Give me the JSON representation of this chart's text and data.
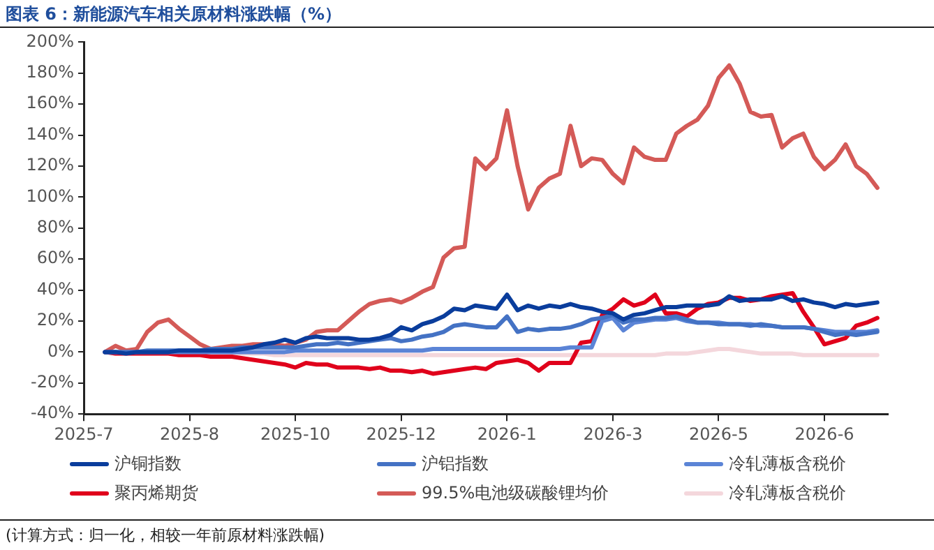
{
  "chart_data": {
    "type": "line",
    "title": "图表 6：新能源汽车相关原材料涨跌幅（%）",
    "categories": [
      "2025-7",
      null,
      null,
      null,
      null,
      null,
      null,
      null,
      null,
      null,
      "2025-8",
      null,
      null,
      null,
      null,
      null,
      null,
      null,
      null,
      null,
      "2025-10",
      null,
      null,
      null,
      null,
      null,
      null,
      null,
      null,
      null,
      "2025-12",
      null,
      null,
      null,
      null,
      null,
      null,
      null,
      null,
      null,
      "2026-1",
      null,
      null,
      null,
      null,
      null,
      null,
      null,
      null,
      null,
      "2026-3",
      null,
      null,
      null,
      null,
      null,
      null,
      null,
      null,
      null,
      "2026-5",
      null,
      null,
      null,
      null,
      null,
      null,
      null,
      null,
      null,
      "2026-6",
      null,
      null,
      null,
      null,
      null,
      null
    ],
    "series": [
      {
        "name": "沪铜指数",
        "color": "#0a3d9c",
        "values": [
          null,
          null,
          0,
          0,
          -1,
          0,
          0,
          0,
          0,
          1,
          1,
          1,
          1,
          1,
          1,
          2,
          3,
          5,
          6,
          8,
          6,
          9,
          10,
          9,
          9,
          9,
          8,
          8,
          9,
          11,
          16,
          14,
          18,
          20,
          23,
          28,
          27,
          30,
          29,
          28,
          37,
          27,
          30,
          28,
          30,
          29,
          31,
          29,
          28,
          26,
          25,
          21,
          24,
          25,
          27,
          29,
          29,
          30,
          30,
          30,
          31,
          36,
          33,
          34,
          34,
          34,
          36,
          33,
          34,
          32,
          31,
          29,
          31,
          30,
          31,
          32,
          null
        ]
      },
      {
        "name": "沪铝指数",
        "color": "#4472c4",
        "values": [
          null,
          null,
          0,
          0,
          0,
          0,
          1,
          1,
          1,
          1,
          1,
          1,
          2,
          2,
          2,
          3,
          3,
          3,
          3,
          3,
          3,
          4,
          5,
          5,
          6,
          5,
          6,
          7,
          8,
          9,
          7,
          8,
          10,
          11,
          13,
          17,
          18,
          17,
          16,
          16,
          23,
          13,
          15,
          14,
          15,
          15,
          16,
          18,
          21,
          22,
          24,
          19,
          21,
          21,
          22,
          22,
          23,
          21,
          19,
          19,
          18,
          18,
          18,
          17,
          18,
          17,
          16,
          16,
          16,
          15,
          13,
          11,
          12,
          11,
          12,
          13,
          null
        ]
      },
      {
        "name": "冷轧薄板含税价",
        "color": "#5b84d6",
        "values": [
          null,
          null,
          0,
          0,
          0,
          0,
          0,
          0,
          0,
          0,
          0,
          0,
          0,
          0,
          0,
          0,
          0,
          0,
          0,
          0,
          1,
          1,
          1,
          1,
          1,
          1,
          1,
          1,
          1,
          1,
          1,
          1,
          1,
          2,
          2,
          2,
          2,
          2,
          2,
          2,
          2,
          2,
          2,
          2,
          2,
          2,
          3,
          3,
          3,
          20,
          22,
          14,
          19,
          20,
          21,
          21,
          22,
          20,
          19,
          19,
          19,
          18,
          18,
          18,
          17,
          17,
          16,
          16,
          16,
          15,
          14,
          13,
          13,
          13,
          13,
          14,
          null
        ]
      },
      {
        "name": "聚丙烯期货",
        "color": "#e0001b",
        "values": [
          null,
          null,
          0,
          -1,
          -1,
          -1,
          -1,
          -1,
          -1,
          -2,
          -2,
          -2,
          -3,
          -3,
          -3,
          -4,
          -5,
          -6,
          -7,
          -8,
          -10,
          -7,
          -8,
          -8,
          -10,
          -10,
          -10,
          -11,
          -10,
          -12,
          -12,
          -13,
          -12,
          -14,
          -13,
          -12,
          -11,
          -10,
          -11,
          -7,
          -6,
          -5,
          -7,
          -12,
          -7,
          -7,
          -7,
          6,
          7,
          24,
          28,
          34,
          30,
          32,
          37,
          25,
          25,
          23,
          28,
          31,
          32,
          35,
          35,
          33,
          34,
          36,
          37,
          38,
          26,
          16,
          5,
          7,
          9,
          17,
          19,
          22,
          null
        ]
      },
      {
        "name": "99.5%电池级碳酸锂均价",
        "color": "#d45a57",
        "values": [
          null,
          null,
          0,
          4,
          1,
          2,
          13,
          19,
          21,
          15,
          10,
          5,
          2,
          3,
          4,
          4,
          5,
          5,
          5,
          4,
          6,
          8,
          13,
          14,
          14,
          20,
          26,
          31,
          33,
          34,
          32,
          35,
          39,
          42,
          61,
          67,
          68,
          125,
          118,
          125,
          156,
          120,
          92,
          106,
          112,
          115,
          146,
          120,
          125,
          124,
          115,
          109,
          132,
          126,
          124,
          124,
          141,
          146,
          150,
          159,
          177,
          185,
          173,
          155,
          152,
          153,
          132,
          138,
          141,
          126,
          118,
          124,
          134,
          120,
          115,
          106,
          null
        ]
      },
      {
        "name": "冷轧薄板含税价",
        "color": "#f4d7dc",
        "values": [
          null,
          null,
          0,
          -1,
          -1,
          -1,
          -1,
          -1,
          -1,
          -1,
          -1,
          -1,
          -1,
          -1,
          -1,
          -1,
          -1,
          -1,
          -2,
          -2,
          -2,
          -2,
          -2,
          -2,
          -2,
          -2,
          -2,
          -2,
          -2,
          -2,
          -2,
          -2,
          -2,
          -2,
          -2,
          -2,
          -2,
          -2,
          -2,
          -2,
          -2,
          -2,
          -2,
          -2,
          -2,
          -2,
          -2,
          -2,
          -2,
          -2,
          -2,
          -2,
          -2,
          -2,
          -2,
          -1,
          -1,
          -1,
          0,
          1,
          2,
          2,
          1,
          0,
          -1,
          -1,
          -1,
          -1,
          -2,
          -2,
          -2,
          -2,
          -2,
          -2,
          -2,
          -2,
          null
        ]
      }
    ],
    "ylim": [
      -40,
      200
    ],
    "yticks": [
      {
        "value": -40,
        "label": "-40%"
      },
      {
        "value": -20,
        "label": "-20%"
      },
      {
        "value": 0,
        "label": "0%"
      },
      {
        "value": 20,
        "label": "20%"
      },
      {
        "value": 40,
        "label": "40%"
      },
      {
        "value": 60,
        "label": "60%"
      },
      {
        "value": 80,
        "label": "80%"
      },
      {
        "value": 100,
        "label": "100%"
      },
      {
        "value": 120,
        "label": "120%"
      },
      {
        "value": 140,
        "label": "140%"
      },
      {
        "value": 160,
        "label": "160%"
      },
      {
        "value": 180,
        "label": "180%"
      },
      {
        "value": 200,
        "label": "200%"
      }
    ],
    "grid": false,
    "legend": "bottom",
    "marker": "none",
    "line_style": "solid",
    "annotations": [
      "(计算方式：归一化，相较一年前原材料涨跌幅)"
    ]
  }
}
